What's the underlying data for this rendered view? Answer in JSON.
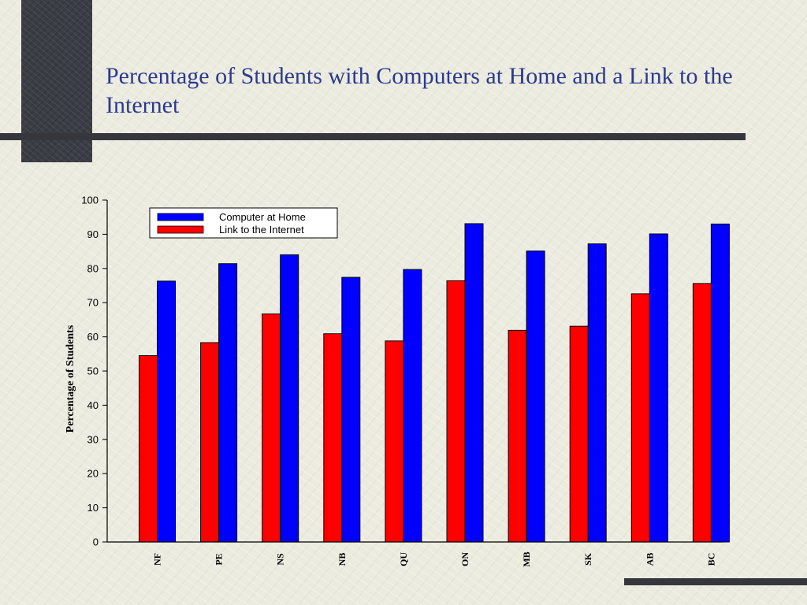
{
  "slide": {
    "title": "Percentage of Students with Computers at Home and a Link to the Internet"
  },
  "colors": {
    "computer": "#0000ff",
    "internet": "#ff0000",
    "title": "#2b3a8e",
    "rule": "#35373c"
  },
  "chart_data": {
    "type": "bar",
    "title": "Percentage of Students with Computers at Home and a Link to the Internet",
    "xlabel": "",
    "ylabel": "Percentage of Students",
    "ylim": [
      0,
      100
    ],
    "yticks": [
      0,
      10,
      20,
      30,
      40,
      50,
      60,
      70,
      80,
      90,
      100
    ],
    "categories": [
      "NF",
      "PE",
      "NS",
      "NB",
      "QU",
      "ON",
      "MB",
      "SK",
      "AB",
      "BC"
    ],
    "series": [
      {
        "name": "Link to the Internet",
        "color": "#ff0000",
        "values": [
          54.5,
          58.3,
          66.7,
          60.9,
          58.8,
          76.4,
          61.9,
          63.1,
          72.6,
          75.6
        ]
      },
      {
        "name": "Computer at Home",
        "color": "#0000ff",
        "values": [
          76.3,
          81.4,
          84.0,
          77.4,
          79.7,
          93.1,
          85.1,
          87.2,
          90.1,
          93.0
        ]
      }
    ],
    "legend": {
      "position": "top-left",
      "order": [
        "Computer at Home",
        "Link to the Internet"
      ]
    },
    "grid": false
  }
}
